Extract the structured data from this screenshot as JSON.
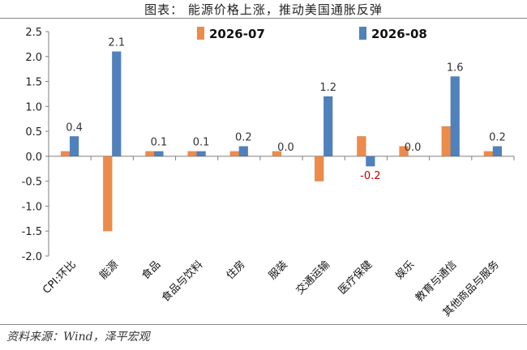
{
  "title": "图表：  能源价格上涨，推动美国通胀反弹",
  "source": "资料来源：Wind，泽平宏观",
  "colors": {
    "s1": "#ED8B4A",
    "s2": "#4F81BD",
    "negative_label": "#C00000"
  },
  "chart_data": {
    "type": "bar",
    "categories": [
      "CPI:环比",
      "能源",
      "食品",
      "食品与饮料",
      "住房",
      "服装",
      "交通运输",
      "医疗保健",
      "娱乐",
      "教育与通信",
      "其他商品与服务"
    ],
    "series": [
      {
        "name": "2026-07",
        "values": [
          0.1,
          -1.5,
          0.1,
          0.1,
          0.1,
          0.1,
          -0.5,
          0.4,
          0.2,
          0.6,
          0.1
        ]
      },
      {
        "name": "2026-08",
        "values": [
          0.4,
          2.1,
          0.1,
          0.1,
          0.2,
          0.0,
          1.2,
          -0.2,
          0.0,
          1.6,
          0.2
        ]
      }
    ],
    "data_labels_series": "2026-08",
    "data_labels": [
      "0.4",
      "2.1",
      "0.1",
      "0.1",
      "0.2",
      "0.0",
      "1.2",
      "-0.2",
      "0.0",
      "1.6",
      "0.2"
    ],
    "yticks": [
      "2.5",
      "2.0",
      "1.5",
      "1.0",
      "0.5",
      "0.0",
      "-0.5",
      "-1.0",
      "-1.5",
      "-2.0"
    ],
    "ylim": [
      -2.0,
      2.5
    ],
    "legend_position": "top"
  }
}
